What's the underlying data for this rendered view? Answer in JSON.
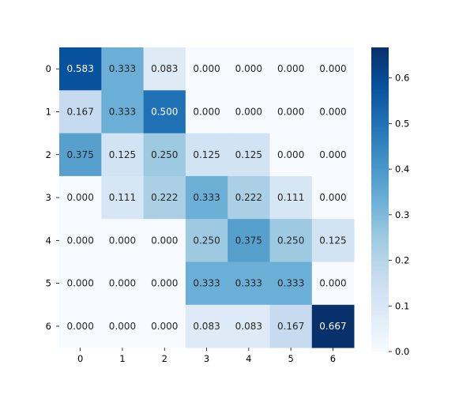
{
  "chart_data": {
    "type": "heatmap",
    "title": "",
    "xlabel": "",
    "ylabel": "",
    "x_tick_labels": [
      "0",
      "1",
      "2",
      "3",
      "4",
      "5",
      "6"
    ],
    "y_tick_labels": [
      "0",
      "1",
      "2",
      "3",
      "4",
      "5",
      "6"
    ],
    "values": [
      [
        0.583,
        0.333,
        0.083,
        0.0,
        0.0,
        0.0,
        0.0
      ],
      [
        0.167,
        0.333,
        0.5,
        0.0,
        0.0,
        0.0,
        0.0
      ],
      [
        0.375,
        0.125,
        0.25,
        0.125,
        0.125,
        0.0,
        0.0
      ],
      [
        0.0,
        0.111,
        0.222,
        0.333,
        0.222,
        0.111,
        0.0
      ],
      [
        0.0,
        0.0,
        0.0,
        0.25,
        0.375,
        0.25,
        0.125
      ],
      [
        0.0,
        0.0,
        0.0,
        0.333,
        0.333,
        0.333,
        0.0
      ],
      [
        0.0,
        0.0,
        0.0,
        0.083,
        0.083,
        0.167,
        0.667
      ]
    ],
    "value_format": "0.000",
    "colormap": "Blues",
    "vmin": 0.0,
    "vmax": 0.667,
    "colorbar": {
      "ticks": [
        0.0,
        0.1,
        0.2,
        0.3,
        0.4,
        0.5,
        0.6
      ],
      "tick_labels": [
        "0.0",
        "0.1",
        "0.2",
        "0.3",
        "0.4",
        "0.5",
        "0.6"
      ]
    },
    "colors": {
      "low": "#f7fbff",
      "high": "#08306b",
      "text_dark": "#262626",
      "text_light": "#ffffff"
    }
  }
}
